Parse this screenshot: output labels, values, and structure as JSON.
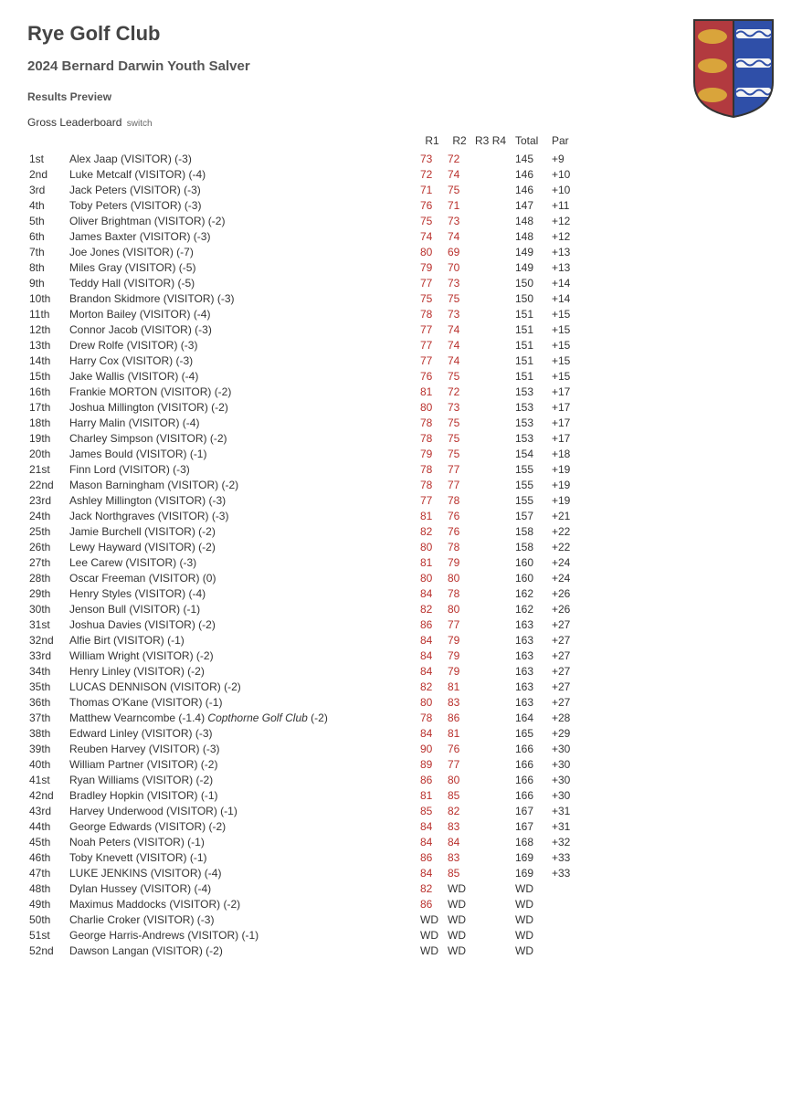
{
  "club_name": "Rye Golf Club",
  "event_name": "2024 Bernard Darwin Youth Salver",
  "section_title": "Results Preview",
  "board_label": "Gross Leaderboard",
  "switch_label": "switch",
  "columns": {
    "r1": "R1",
    "r2": "R2",
    "r3": "R3",
    "r4": "R4",
    "total": "Total",
    "par": "Par"
  },
  "crest": {
    "left_bg": "#b23a3f",
    "right_bg": "#2f4fa8",
    "lion": "#d9a43b",
    "wave_white": "#f5f5f5",
    "wave_blue": "#2f4fa8",
    "outline": "#333333"
  },
  "score_color": "#b9302c",
  "rows": [
    {
      "pos": "1st",
      "name": "Alex Jaap (VISITOR) (-3)",
      "r1": "73",
      "r2": "72",
      "total": "145",
      "par": "+9"
    },
    {
      "pos": "2nd",
      "name": "Luke Metcalf (VISITOR) (-4)",
      "r1": "72",
      "r2": "74",
      "total": "146",
      "par": "+10"
    },
    {
      "pos": "3rd",
      "name": "Jack Peters (VISITOR) (-3)",
      "r1": "71",
      "r2": "75",
      "total": "146",
      "par": "+10"
    },
    {
      "pos": "4th",
      "name": "Toby Peters (VISITOR) (-3)",
      "r1": "76",
      "r2": "71",
      "total": "147",
      "par": "+11"
    },
    {
      "pos": "5th",
      "name": "Oliver Brightman (VISITOR) (-2)",
      "r1": "75",
      "r2": "73",
      "total": "148",
      "par": "+12"
    },
    {
      "pos": "6th",
      "name": "James Baxter (VISITOR) (-3)",
      "r1": "74",
      "r2": "74",
      "total": "148",
      "par": "+12"
    },
    {
      "pos": "7th",
      "name": "Joe Jones (VISITOR) (-7)",
      "r1": "80",
      "r2": "69",
      "total": "149",
      "par": "+13"
    },
    {
      "pos": "8th",
      "name": "Miles Gray (VISITOR) (-5)",
      "r1": "79",
      "r2": "70",
      "total": "149",
      "par": "+13"
    },
    {
      "pos": "9th",
      "name": "Teddy Hall (VISITOR) (-5)",
      "r1": "77",
      "r2": "73",
      "total": "150",
      "par": "+14"
    },
    {
      "pos": "10th",
      "name": "Brandon Skidmore (VISITOR) (-3)",
      "r1": "75",
      "r2": "75",
      "total": "150",
      "par": "+14"
    },
    {
      "pos": "11th",
      "name": "Morton Bailey (VISITOR) (-4)",
      "r1": "78",
      "r2": "73",
      "total": "151",
      "par": "+15"
    },
    {
      "pos": "12th",
      "name": "Connor Jacob (VISITOR) (-3)",
      "r1": "77",
      "r2": "74",
      "total": "151",
      "par": "+15"
    },
    {
      "pos": "13th",
      "name": "Drew Rolfe (VISITOR) (-3)",
      "r1": "77",
      "r2": "74",
      "total": "151",
      "par": "+15"
    },
    {
      "pos": "14th",
      "name": "Harry Cox (VISITOR) (-3)",
      "r1": "77",
      "r2": "74",
      "total": "151",
      "par": "+15"
    },
    {
      "pos": "15th",
      "name": "Jake Wallis (VISITOR) (-4)",
      "r1": "76",
      "r2": "75",
      "total": "151",
      "par": "+15"
    },
    {
      "pos": "16th",
      "name": "Frankie MORTON (VISITOR) (-2)",
      "r1": "81",
      "r2": "72",
      "total": "153",
      "par": "+17"
    },
    {
      "pos": "17th",
      "name": "Joshua Millington (VISITOR) (-2)",
      "r1": "80",
      "r2": "73",
      "total": "153",
      "par": "+17"
    },
    {
      "pos": "18th",
      "name": "Harry Malin (VISITOR) (-4)",
      "r1": "78",
      "r2": "75",
      "total": "153",
      "par": "+17"
    },
    {
      "pos": "19th",
      "name": "Charley Simpson (VISITOR) (-2)",
      "r1": "78",
      "r2": "75",
      "total": "153",
      "par": "+17"
    },
    {
      "pos": "20th",
      "name": "James Bould (VISITOR) (-1)",
      "r1": "79",
      "r2": "75",
      "total": "154",
      "par": "+18"
    },
    {
      "pos": "21st",
      "name": "Finn Lord (VISITOR) (-3)",
      "r1": "78",
      "r2": "77",
      "total": "155",
      "par": "+19"
    },
    {
      "pos": "22nd",
      "name": "Mason Barningham (VISITOR) (-2)",
      "r1": "78",
      "r2": "77",
      "total": "155",
      "par": "+19"
    },
    {
      "pos": "23rd",
      "name": "Ashley Millington (VISITOR) (-3)",
      "r1": "77",
      "r2": "78",
      "total": "155",
      "par": "+19"
    },
    {
      "pos": "24th",
      "name": "Jack Northgraves (VISITOR) (-3)",
      "r1": "81",
      "r2": "76",
      "total": "157",
      "par": "+21"
    },
    {
      "pos": "25th",
      "name": "Jamie Burchell (VISITOR) (-2)",
      "r1": "82",
      "r2": "76",
      "total": "158",
      "par": "+22"
    },
    {
      "pos": "26th",
      "name": "Lewy Hayward (VISITOR) (-2)",
      "r1": "80",
      "r2": "78",
      "total": "158",
      "par": "+22"
    },
    {
      "pos": "27th",
      "name": "Lee Carew (VISITOR) (-3)",
      "r1": "81",
      "r2": "79",
      "total": "160",
      "par": "+24"
    },
    {
      "pos": "28th",
      "name": "Oscar Freeman (VISITOR) (0)",
      "r1": "80",
      "r2": "80",
      "total": "160",
      "par": "+24"
    },
    {
      "pos": "29th",
      "name": "Henry Styles (VISITOR) (-4)",
      "r1": "84",
      "r2": "78",
      "total": "162",
      "par": "+26"
    },
    {
      "pos": "30th",
      "name": "Jenson Bull (VISITOR) (-1)",
      "r1": "82",
      "r2": "80",
      "total": "162",
      "par": "+26"
    },
    {
      "pos": "31st",
      "name": "Joshua Davies (VISITOR) (-2)",
      "r1": "86",
      "r2": "77",
      "total": "163",
      "par": "+27"
    },
    {
      "pos": "32nd",
      "name": "Alfie Birt (VISITOR) (-1)",
      "r1": "84",
      "r2": "79",
      "total": "163",
      "par": "+27"
    },
    {
      "pos": "33rd",
      "name": "William Wright (VISITOR) (-2)",
      "r1": "84",
      "r2": "79",
      "total": "163",
      "par": "+27"
    },
    {
      "pos": "34th",
      "name": "Henry Linley (VISITOR) (-2)",
      "r1": "84",
      "r2": "79",
      "total": "163",
      "par": "+27"
    },
    {
      "pos": "35th",
      "name": "LUCAS DENNISON (VISITOR) (-2)",
      "r1": "82",
      "r2": "81",
      "total": "163",
      "par": "+27"
    },
    {
      "pos": "36th",
      "name": "Thomas O'Kane (VISITOR) (-1)",
      "r1": "80",
      "r2": "83",
      "total": "163",
      "par": "+27"
    },
    {
      "pos": "37th",
      "name_parts": [
        {
          "t": "Matthew Vearncombe (-1.4) "
        },
        {
          "t": "Copthorne Golf Club",
          "i": true
        },
        {
          "t": " (-2)"
        }
      ],
      "r1": "78",
      "r2": "86",
      "total": "164",
      "par": "+28"
    },
    {
      "pos": "38th",
      "name": "Edward Linley (VISITOR) (-3)",
      "r1": "84",
      "r2": "81",
      "total": "165",
      "par": "+29"
    },
    {
      "pos": "39th",
      "name": "Reuben Harvey (VISITOR) (-3)",
      "r1": "90",
      "r2": "76",
      "total": "166",
      "par": "+30"
    },
    {
      "pos": "40th",
      "name": "William Partner (VISITOR) (-2)",
      "r1": "89",
      "r2": "77",
      "total": "166",
      "par": "+30"
    },
    {
      "pos": "41st",
      "name": "Ryan Williams (VISITOR) (-2)",
      "r1": "86",
      "r2": "80",
      "total": "166",
      "par": "+30"
    },
    {
      "pos": "42nd",
      "name": "Bradley Hopkin (VISITOR) (-1)",
      "r1": "81",
      "r2": "85",
      "total": "166",
      "par": "+30"
    },
    {
      "pos": "43rd",
      "name": "Harvey Underwood (VISITOR) (-1)",
      "r1": "85",
      "r2": "82",
      "total": "167",
      "par": "+31"
    },
    {
      "pos": "44th",
      "name": "George Edwards (VISITOR) (-2)",
      "r1": "84",
      "r2": "83",
      "total": "167",
      "par": "+31"
    },
    {
      "pos": "45th",
      "name": "Noah Peters (VISITOR) (-1)",
      "r1": "84",
      "r2": "84",
      "total": "168",
      "par": "+32"
    },
    {
      "pos": "46th",
      "name": "Toby Knevett (VISITOR) (-1)",
      "r1": "86",
      "r2": "83",
      "total": "169",
      "par": "+33"
    },
    {
      "pos": "47th",
      "name": "LUKE JENKINS (VISITOR) (-4)",
      "r1": "84",
      "r2": "85",
      "total": "169",
      "par": "+33"
    },
    {
      "pos": "48th",
      "name": "Dylan Hussey (VISITOR) (-4)",
      "r1": "82",
      "r2": "WD",
      "total": "WD",
      "par": ""
    },
    {
      "pos": "49th",
      "name": "Maximus Maddocks (VISITOR) (-2)",
      "r1": "86",
      "r2": "WD",
      "total": "WD",
      "par": ""
    },
    {
      "pos": "50th",
      "name": "Charlie Croker (VISITOR) (-3)",
      "r1": "WD",
      "r2": "WD",
      "total": "WD",
      "par": ""
    },
    {
      "pos": "51st",
      "name": "George Harris-Andrews (VISITOR) (-1)",
      "r1": "WD",
      "r2": "WD",
      "total": "WD",
      "par": ""
    },
    {
      "pos": "52nd",
      "name": "Dawson Langan (VISITOR) (-2)",
      "r1": "WD",
      "r2": "WD",
      "total": "WD",
      "par": ""
    }
  ]
}
